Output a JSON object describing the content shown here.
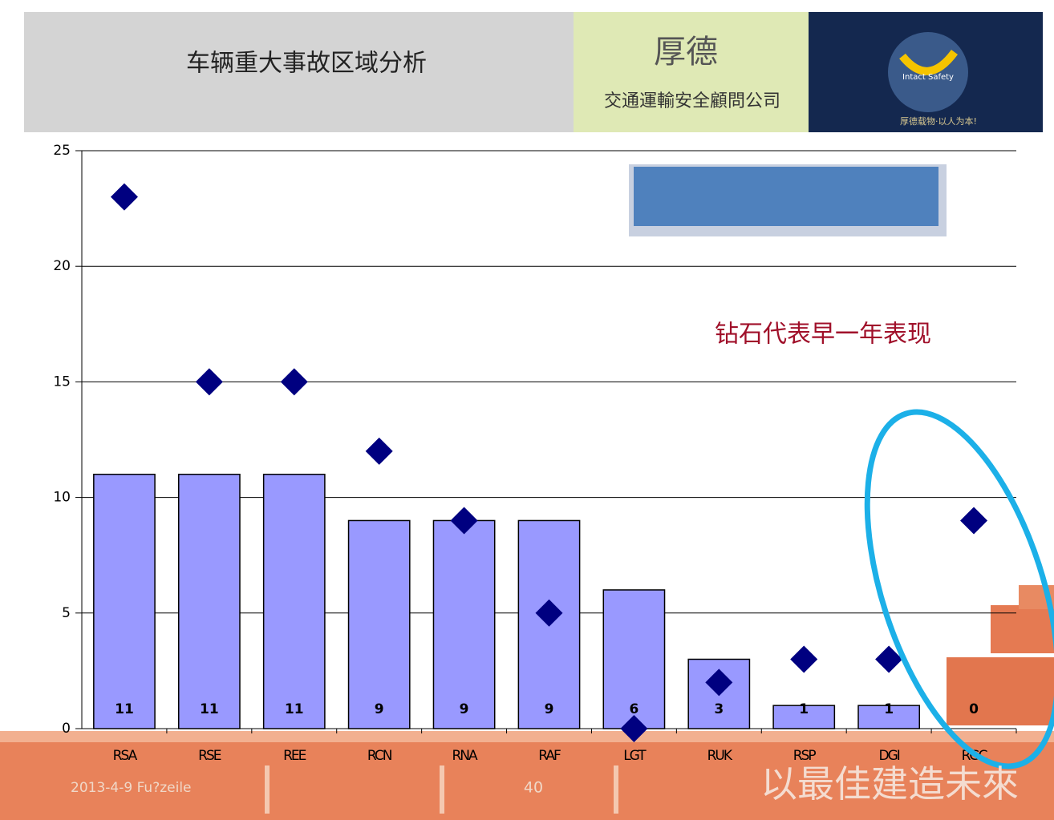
{
  "header": {
    "title": "车辆重大事故区域分析",
    "brand": "厚德",
    "company": "交通運輸安全顧問公司",
    "logo_text": "Intact Safety",
    "motto": "厚德载物·以人为本!"
  },
  "chart_data": {
    "type": "bar",
    "categories": [
      "RSA",
      "RSE",
      "REE",
      "RCN",
      "RNA",
      "RAF",
      "LGT",
      "RUK",
      "RSP",
      "DGI",
      "RGC"
    ],
    "series": [
      {
        "color": "#9999ff",
        "values": [
          11,
          11,
          11,
          9,
          9,
          9,
          6,
          3,
          1,
          1,
          0
        ],
        "labels": true
      },
      {
        "type": "scatter",
        "marker": "diamond",
        "color": "#000080",
        "values": [
          23,
          15,
          15,
          12,
          9,
          5,
          0,
          2,
          3,
          3,
          9
        ]
      }
    ],
    "ylim": [
      0,
      25
    ],
    "yticks": [
      0,
      5,
      10,
      15,
      20,
      25
    ],
    "grid": true,
    "annotation": "钻石代表早一年表现"
  },
  "footer": {
    "date": "2013-4-9 Fu?zeile",
    "page": "40",
    "slogan": "以最佳建造未來"
  }
}
